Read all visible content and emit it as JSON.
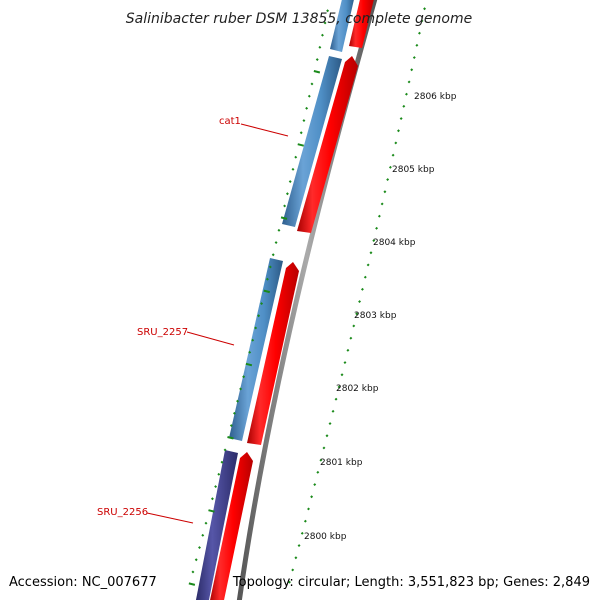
{
  "title": "Salinibacter ruber DSM 13855, complete genome",
  "accession": "Accession: NC_007677",
  "summary": "Topology: circular; Length: 3,551,823 bp; Genes: 2,849",
  "scale_labels": [
    "2806 kbp",
    "2805 kbp",
    "2804 kbp",
    "2803 kbp",
    "2802 kbp",
    "2801 kbp",
    "2800 kbp"
  ],
  "gene_labels": [
    "cat1",
    "SRU_2257",
    "SRU_2256"
  ],
  "colors": {
    "forward_strand": "#ff0000",
    "reverse_strand": "#4f8fc6",
    "reverse_strand_dark": "#3f3f8f",
    "backbone": "#777777",
    "ticks": "#1a8a1a",
    "gene_label": "#cc0000"
  }
}
